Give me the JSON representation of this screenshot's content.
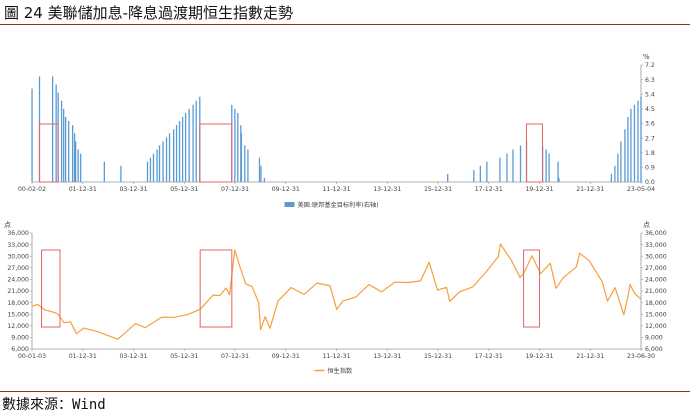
{
  "figure": {
    "title": "圖 24 美聯儲加息-降息過渡期恒生指數走勢",
    "source": "數據來源：Wind",
    "rule_color": "#9b2d2a"
  },
  "chart_data": [
    {
      "type": "bar",
      "legend": "美国:联邦基金目标利率(右轴)",
      "legend_position": "bottom-center",
      "y_unit": "%",
      "ylim": [
        0,
        7.2
      ],
      "y_ticks": [
        "0.0",
        "0.9",
        "1.8",
        "2.7",
        "3.6",
        "4.5",
        "5.4",
        "6.3",
        "7.2"
      ],
      "x_tick_labels": [
        "00-02-02",
        "01-12-31",
        "03-12-31",
        "05-12-31",
        "07-12-31",
        "09-12-31",
        "11-12-31",
        "13-12-31",
        "15-12-31",
        "17-12-31",
        "19-12-31",
        "21-12-31",
        "23-05-04"
      ],
      "x_range": [
        "2000-02-02",
        "2023-05-04"
      ],
      "bar_color": "#5b9bd5",
      "dates": [
        "2000-02-02",
        "2000-05-16",
        "2000-11-15",
        "2001-01-03",
        "2001-01-31",
        "2001-03-20",
        "2001-04-18",
        "2001-05-15",
        "2001-06-27",
        "2001-08-21",
        "2001-09-17",
        "2001-10-02",
        "2001-11-06",
        "2001-12-11",
        "2002-11-06",
        "2003-06-25",
        "2004-06-30",
        "2004-08-10",
        "2004-09-21",
        "2004-11-10",
        "2004-12-14",
        "2005-02-02",
        "2005-03-22",
        "2005-05-03",
        "2005-06-30",
        "2005-08-09",
        "2005-09-20",
        "2005-11-01",
        "2005-12-13",
        "2006-01-31",
        "2006-03-28",
        "2006-05-10",
        "2006-06-29",
        "2007-09-18",
        "2007-10-31",
        "2007-12-11",
        "2008-01-22",
        "2008-01-30",
        "2008-03-18",
        "2008-04-30",
        "2008-10-08",
        "2008-10-29",
        "2008-12-16",
        "2015-12-16",
        "2016-12-14",
        "2017-03-15",
        "2017-06-14",
        "2017-12-13",
        "2018-03-21",
        "2018-06-13",
        "2018-09-26",
        "2018-12-19",
        "2019-07-31",
        "2019-09-18",
        "2019-10-30",
        "2020-03-03",
        "2020-03-15",
        "2022-03-16",
        "2022-05-04",
        "2022-06-15",
        "2022-07-27",
        "2022-09-21",
        "2022-11-02",
        "2022-12-14",
        "2023-02-01",
        "2023-03-22",
        "2023-05-03"
      ],
      "values": [
        5.75,
        6.5,
        6.5,
        6.0,
        5.5,
        5.0,
        4.5,
        4.0,
        3.75,
        3.5,
        3.0,
        2.5,
        2.0,
        1.75,
        1.25,
        1.0,
        1.25,
        1.5,
        1.75,
        2.0,
        2.25,
        2.5,
        2.75,
        3.0,
        3.25,
        3.5,
        3.75,
        4.0,
        4.25,
        4.5,
        4.75,
        5.0,
        5.25,
        4.75,
        4.5,
        4.25,
        3.5,
        3.0,
        2.25,
        2.0,
        1.5,
        1.0,
        0.25,
        0.5,
        0.75,
        1.0,
        1.25,
        1.5,
        1.75,
        2.0,
        2.25,
        2.5,
        2.25,
        2.0,
        1.75,
        1.25,
        0.25,
        0.5,
        1.0,
        1.75,
        2.5,
        3.25,
        4.0,
        4.5,
        4.75,
        5.0,
        5.25
      ]
    },
    {
      "type": "line",
      "legend": "恒生指数",
      "legend_position": "bottom-center",
      "y_unit": "点",
      "ylim": [
        6000,
        36000
      ],
      "y_ticks": [
        "6,000",
        "9,000",
        "12,000",
        "15,000",
        "18,000",
        "21,000",
        "24,000",
        "27,000",
        "30,000",
        "33,000",
        "36,000"
      ],
      "x_tick_labels": [
        "00-01-03",
        "01-12-31",
        "03-12-31",
        "05-12-31",
        "07-12-31",
        "09-12-31",
        "11-12-31",
        "13-12-31",
        "15-12-31",
        "17-12-31",
        "19-12-31",
        "21-12-31",
        "23-06-30"
      ],
      "x_range": [
        "2000-01-03",
        "2023-06-30"
      ],
      "line_color": "#f5a03c",
      "dates": [
        "2000-01-03",
        "2000-03-28",
        "2000-06-30",
        "2000-09-29",
        "2000-12-29",
        "2001-03-30",
        "2001-06-29",
        "2001-09-21",
        "2001-12-31",
        "2002-06-28",
        "2002-12-31",
        "2003-04-25",
        "2003-06-30",
        "2003-12-31",
        "2004-05-17",
        "2004-12-31",
        "2005-06-30",
        "2005-12-30",
        "2006-06-30",
        "2006-12-29",
        "2007-03-30",
        "2007-06-29",
        "2007-08-17",
        "2007-10-30",
        "2007-12-31",
        "2008-03-31",
        "2008-06-30",
        "2008-09-30",
        "2008-10-27",
        "2008-12-31",
        "2009-03-09",
        "2009-06-30",
        "2009-12-31",
        "2010-06-30",
        "2010-12-31",
        "2011-06-30",
        "2011-10-04",
        "2011-12-30",
        "2012-06-29",
        "2012-12-31",
        "2013-06-28",
        "2013-12-31",
        "2014-06-30",
        "2014-12-31",
        "2015-04-28",
        "2015-08-24",
        "2015-12-31",
        "2016-02-12",
        "2016-06-30",
        "2016-12-30",
        "2017-06-30",
        "2017-12-29",
        "2018-01-26",
        "2018-06-29",
        "2018-10-30",
        "2018-12-31",
        "2019-04-15",
        "2019-08-15",
        "2019-12-31",
        "2020-03-19",
        "2020-06-30",
        "2020-12-31",
        "2021-02-17",
        "2021-06-30",
        "2021-12-31",
        "2022-03-15",
        "2022-06-30",
        "2022-10-31",
        "2022-12-30",
        "2023-01-27",
        "2023-03-31",
        "2023-06-30"
      ],
      "values": [
        17100,
        17500,
        16100,
        15700,
        15100,
        12800,
        13000,
        9950,
        11400,
        10600,
        9320,
        8500,
        9580,
        12580,
        11500,
        14230,
        14200,
        14880,
        16260,
        19960,
        19800,
        21770,
        20000,
        31640,
        27810,
        22850,
        22100,
        18000,
        11000,
        14390,
        11350,
        18380,
        21870,
        20130,
        23040,
        22400,
        16250,
        18430,
        19440,
        22660,
        20800,
        23310,
        23190,
        23600,
        28440,
        21250,
        21910,
        18320,
        20800,
        22000,
        25760,
        29920,
        33150,
        28950,
        24550,
        25850,
        30130,
        25500,
        28190,
        21700,
        24430,
        27230,
        30750,
        28830,
        23400,
        18400,
        21860,
        14860,
        19780,
        22700,
        20400,
        18900
      ]
    }
  ],
  "highlight_boxes": {
    "color": "#e06666",
    "periods": [
      {
        "start": "2000-05-16",
        "end": "2001-01-31"
      },
      {
        "start": "2006-06-29",
        "end": "2007-09-18"
      },
      {
        "start": "2018-12-19",
        "end": "2019-07-31"
      }
    ]
  }
}
